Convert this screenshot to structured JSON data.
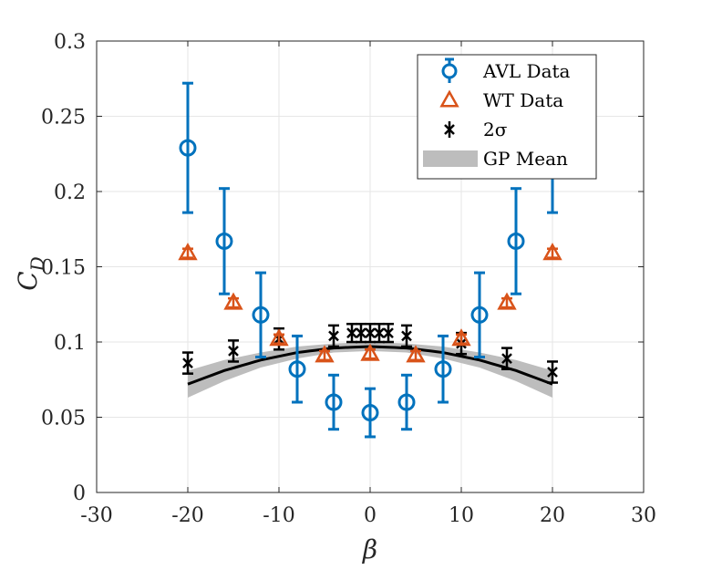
{
  "chart_data": {
    "type": "scatter",
    "xlabel": "β",
    "ylabel": "C",
    "ylabel_sub": "D",
    "xlim": [
      -30,
      30
    ],
    "ylim": [
      0,
      0.3
    ],
    "xticks": [
      -30,
      -20,
      -10,
      0,
      10,
      20,
      30
    ],
    "yticks": [
      0,
      0.05,
      0.1,
      0.15,
      0.2,
      0.25,
      0.3
    ],
    "xtick_labels": [
      "-30",
      "-20",
      "-10",
      "0",
      "10",
      "20",
      "30"
    ],
    "ytick_labels": [
      "0",
      "0.05",
      "0.1",
      "0.15",
      "0.2",
      "0.25",
      "0.3"
    ],
    "grid": true,
    "legend_position": "top-right",
    "colors": {
      "avl": "#0072BD",
      "wt": "#D95319",
      "sigma": "#000000",
      "gp_band": "#bdbdbd",
      "gp_mean": "#000000"
    },
    "series": [
      {
        "name": "AVL Data",
        "marker": "circle",
        "x": [
          -20,
          -16,
          -12,
          -8,
          -4,
          0,
          4,
          8,
          12,
          16,
          20
        ],
        "y": [
          0.229,
          0.167,
          0.118,
          0.082,
          0.06,
          0.053,
          0.06,
          0.082,
          0.118,
          0.167,
          0.229
        ],
        "err": [
          0.043,
          0.035,
          0.028,
          0.022,
          0.018,
          0.016,
          0.018,
          0.022,
          0.028,
          0.035,
          0.043
        ]
      },
      {
        "name": "WT Data",
        "marker": "triangle",
        "x": [
          -20,
          -15,
          -10,
          -5,
          0,
          5,
          10,
          15,
          20
        ],
        "y": [
          0.159,
          0.126,
          0.102,
          0.091,
          0.092,
          0.091,
          0.102,
          0.126,
          0.159
        ],
        "err": [
          0.003,
          0.003,
          0.003,
          0.003,
          0.003,
          0.003,
          0.003,
          0.003,
          0.003
        ]
      },
      {
        "name": "2σ",
        "marker": "x",
        "x": [
          -20,
          -15,
          -10,
          -4,
          -2,
          -1,
          0,
          1,
          2,
          4,
          10,
          15,
          20
        ],
        "y": [
          0.086,
          0.094,
          0.102,
          0.104,
          0.106,
          0.106,
          0.106,
          0.106,
          0.106,
          0.104,
          0.099,
          0.089,
          0.08
        ],
        "err": [
          0.007,
          0.007,
          0.007,
          0.007,
          0.006,
          0.006,
          0.006,
          0.006,
          0.006,
          0.007,
          0.007,
          0.007,
          0.007
        ]
      },
      {
        "name": "GP Mean",
        "type": "line",
        "x": [
          -20,
          -16,
          -12,
          -8,
          -4,
          0,
          4,
          8,
          12,
          16,
          20
        ],
        "y": [
          0.072,
          0.081,
          0.088,
          0.093,
          0.096,
          0.097,
          0.096,
          0.093,
          0.088,
          0.081,
          0.072
        ],
        "band": [
          0.009,
          0.007,
          0.005,
          0.004,
          0.003,
          0.003,
          0.003,
          0.004,
          0.005,
          0.007,
          0.009
        ]
      }
    ]
  }
}
